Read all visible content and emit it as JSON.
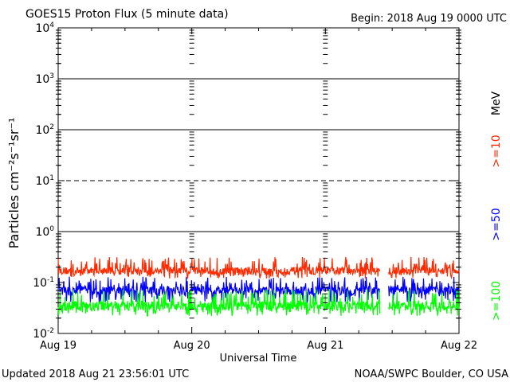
{
  "chart_data": {
    "type": "line",
    "title": "GOES15 Proton Flux (5 minute data)",
    "begin_label": "Begin: 2018 Aug 19 0000 UTC",
    "ylabel": "Particles cm⁻²s⁻¹sr⁻¹",
    "xlabel": "Universal Time",
    "x_ticks": [
      "Aug 19",
      "Aug 20",
      "Aug 21",
      "Aug 22"
    ],
    "y_ticks": [
      {
        "exp": "4",
        "value": 10000
      },
      {
        "exp": "3",
        "value": 1000
      },
      {
        "exp": "2",
        "value": 100
      },
      {
        "exp": "1",
        "value": 10
      },
      {
        "exp": "0",
        "value": 1
      },
      {
        "exp": "-1",
        "value": 0.1
      },
      {
        "exp": "-2",
        "value": 0.01
      }
    ],
    "y_scale": "log",
    "ylim": [
      0.01,
      10000
    ],
    "xlim_days": [
      0,
      3
    ],
    "threshold_lines": [
      {
        "value": 1000,
        "style": "solid"
      },
      {
        "value": 100,
        "style": "solid"
      },
      {
        "value": 10,
        "style": "dashed"
      },
      {
        "value": 1,
        "style": "solid"
      }
    ],
    "data_gap_days": [
      2.41,
      2.47
    ],
    "energy_unit": "MeV",
    "series": [
      {
        "name": ">=10",
        "color": "#ff2a00",
        "low": 0.12,
        "high": 0.32,
        "typical": 0.17
      },
      {
        "name": ">=50",
        "color": "#0000ff",
        "low": 0.04,
        "high": 0.13,
        "typical": 0.07
      },
      {
        "name": ">=100",
        "color": "#00ff00",
        "low": 0.022,
        "high": 0.075,
        "typical": 0.035
      }
    ]
  },
  "footer": {
    "updated": "Updated 2018 Aug 21 23:56:01 UTC",
    "source": "NOAA/SWPC Boulder, CO USA"
  }
}
